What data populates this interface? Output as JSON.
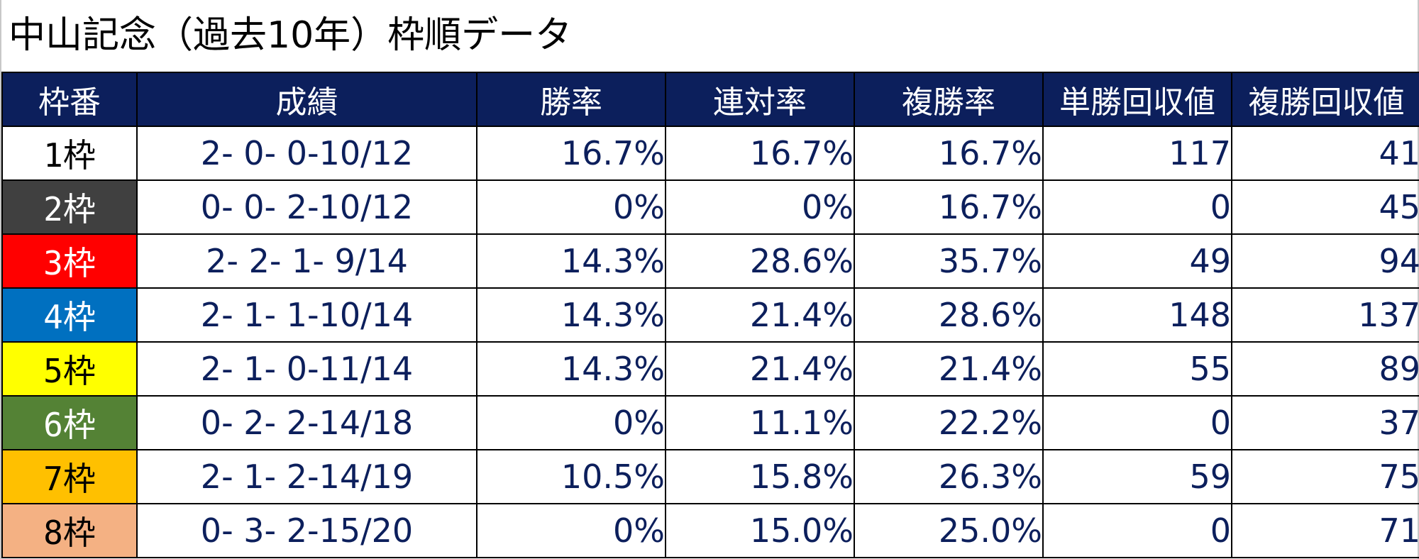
{
  "title": "中山記念（過去10年）枠順データ",
  "table": {
    "headers": [
      "枠番",
      "成績",
      "勝率",
      "連対率",
      "複勝率",
      "単勝回収値",
      "複勝回収値"
    ],
    "rows": [
      {
        "frame_no": "1",
        "frame_suffix": "枠",
        "frame_bg": "#ffffff",
        "frame_fg": "#000000",
        "record": "2- 0- 0-10/12",
        "win_rate": "16.7%",
        "place2_rate": "16.7%",
        "show_rate": "16.7%",
        "win_return": "117",
        "show_return": "41"
      },
      {
        "frame_no": "2",
        "frame_suffix": "枠",
        "frame_bg": "#404040",
        "frame_fg": "#ffffff",
        "record": "0- 0- 2-10/12",
        "win_rate": "0%",
        "place2_rate": "0%",
        "show_rate": "16.7%",
        "win_return": "0",
        "show_return": "45"
      },
      {
        "frame_no": "3",
        "frame_suffix": "枠",
        "frame_bg": "#ff0000",
        "frame_fg": "#ffffff",
        "record": "2- 2- 1- 9/14",
        "win_rate": "14.3%",
        "place2_rate": "28.6%",
        "show_rate": "35.7%",
        "win_return": "49",
        "show_return": "94"
      },
      {
        "frame_no": "4",
        "frame_suffix": "枠",
        "frame_bg": "#0070c0",
        "frame_fg": "#ffffff",
        "record": "2- 1- 1-10/14",
        "win_rate": "14.3%",
        "place2_rate": "21.4%",
        "show_rate": "28.6%",
        "win_return": "148",
        "show_return": "137"
      },
      {
        "frame_no": "5",
        "frame_suffix": "枠",
        "frame_bg": "#ffff00",
        "frame_fg": "#000000",
        "record": "2- 1- 0-11/14",
        "win_rate": "14.3%",
        "place2_rate": "21.4%",
        "show_rate": "21.4%",
        "win_return": "55",
        "show_return": "89"
      },
      {
        "frame_no": "6",
        "frame_suffix": "枠",
        "frame_bg": "#548235",
        "frame_fg": "#ffffff",
        "record": "0- 2- 2-14/18",
        "win_rate": "0%",
        "place2_rate": "11.1%",
        "show_rate": "22.2%",
        "win_return": "0",
        "show_return": "37"
      },
      {
        "frame_no": "7",
        "frame_suffix": "枠",
        "frame_bg": "#ffc000",
        "frame_fg": "#000000",
        "record": "2- 1- 2-14/19",
        "win_rate": "10.5%",
        "place2_rate": "15.8%",
        "show_rate": "26.3%",
        "win_return": "59",
        "show_return": "75"
      },
      {
        "frame_no": "8",
        "frame_suffix": "枠",
        "frame_bg": "#f4b183",
        "frame_fg": "#000000",
        "record": "0- 3- 2-15/20",
        "win_rate": "0%",
        "place2_rate": "15.0%",
        "show_rate": "25.0%",
        "win_return": "0",
        "show_return": "71"
      }
    ]
  },
  "colors": {
    "header_bg": "#0c1f5c",
    "header_text": "#ffffff",
    "body_text": "#0c1f5c",
    "grid": "#000000"
  }
}
